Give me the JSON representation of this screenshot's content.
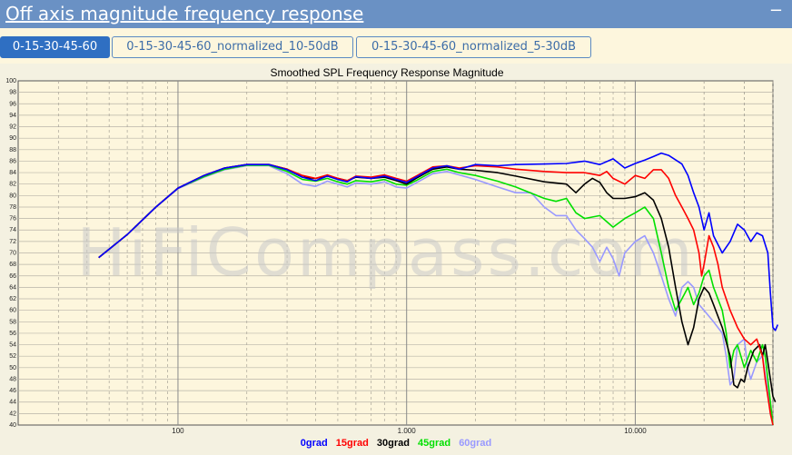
{
  "header": {
    "title": "Off axis magnitude frequency response",
    "collapse": "−"
  },
  "tabs": [
    {
      "label": "0-15-30-45-60",
      "active": true
    },
    {
      "label": "0-15-30-45-60_normalized_10-50dB",
      "active": false
    },
    {
      "label": "0-15-30-45-60_normalized_5-30dB",
      "active": false
    }
  ],
  "watermark": "HiFiCompass.com",
  "chart_data": {
    "type": "line",
    "title": "Smoothed SPL Frequency Response Magnitude",
    "xscale": "log",
    "xlim": [
      20,
      40000
    ],
    "ylim": [
      40,
      100
    ],
    "xticks": [
      {
        "value": 100,
        "label": "100"
      },
      {
        "value": 1000,
        "label": "1.000"
      },
      {
        "value": 10000,
        "label": "10.000"
      }
    ],
    "yticks": [
      40,
      42,
      44,
      46,
      48,
      50,
      52,
      54,
      56,
      58,
      60,
      62,
      64,
      66,
      68,
      70,
      72,
      74,
      76,
      78,
      80,
      82,
      84,
      86,
      88,
      90,
      92,
      94,
      96,
      98,
      100
    ],
    "grid": true,
    "legend_position": "bottom",
    "series": [
      {
        "name": "0grad",
        "color": "#0000ff",
        "points": [
          [
            45,
            69.2
          ],
          [
            60,
            73.2
          ],
          [
            80,
            78
          ],
          [
            100,
            81.3
          ],
          [
            130,
            83.5
          ],
          [
            160,
            84.8
          ],
          [
            200,
            85.4
          ],
          [
            250,
            85.4
          ],
          [
            300,
            84.5
          ],
          [
            350,
            83.2
          ],
          [
            400,
            82.6
          ],
          [
            450,
            83.4
          ],
          [
            500,
            82.8
          ],
          [
            550,
            82.4
          ],
          [
            600,
            83.3
          ],
          [
            700,
            83
          ],
          [
            800,
            83.4
          ],
          [
            900,
            82.8
          ],
          [
            1000,
            82.3
          ],
          [
            1100,
            83.2
          ],
          [
            1300,
            84.8
          ],
          [
            1500,
            85.2
          ],
          [
            1700,
            84.6
          ],
          [
            2000,
            85.4
          ],
          [
            2500,
            85.2
          ],
          [
            3000,
            85.4
          ],
          [
            4000,
            85.5
          ],
          [
            5000,
            85.6
          ],
          [
            6000,
            86
          ],
          [
            7000,
            85.4
          ],
          [
            8000,
            86.4
          ],
          [
            9000,
            84.8
          ],
          [
            10000,
            85.6
          ],
          [
            11000,
            86.2
          ],
          [
            12000,
            86.8
          ],
          [
            13000,
            87.4
          ],
          [
            14000,
            87
          ],
          [
            16000,
            85.5
          ],
          [
            17000,
            83.5
          ],
          [
            18000,
            80.5
          ],
          [
            19000,
            78
          ],
          [
            20000,
            74
          ],
          [
            21000,
            77
          ],
          [
            22000,
            73
          ],
          [
            24000,
            70
          ],
          [
            26000,
            72
          ],
          [
            28000,
            75
          ],
          [
            30000,
            74
          ],
          [
            32000,
            72
          ],
          [
            34000,
            73.5
          ],
          [
            36000,
            73
          ],
          [
            38000,
            70
          ],
          [
            39000,
            63
          ],
          [
            40000,
            57
          ],
          [
            41000,
            56.5
          ],
          [
            42000,
            57.5
          ]
        ]
      },
      {
        "name": "15grad",
        "color": "#ff0000",
        "points": [
          [
            45,
            69.2
          ],
          [
            60,
            73.2
          ],
          [
            80,
            78
          ],
          [
            100,
            81.3
          ],
          [
            130,
            83.5
          ],
          [
            160,
            84.8
          ],
          [
            200,
            85.4
          ],
          [
            250,
            85.4
          ],
          [
            300,
            84.6
          ],
          [
            350,
            83.5
          ],
          [
            400,
            83
          ],
          [
            450,
            83.6
          ],
          [
            500,
            83
          ],
          [
            550,
            82.6
          ],
          [
            600,
            83.4
          ],
          [
            700,
            83.2
          ],
          [
            800,
            83.6
          ],
          [
            900,
            83
          ],
          [
            1000,
            82.5
          ],
          [
            1100,
            83.4
          ],
          [
            1300,
            85
          ],
          [
            1500,
            85.2
          ],
          [
            1700,
            84.8
          ],
          [
            2000,
            85.2
          ],
          [
            2500,
            85
          ],
          [
            3000,
            84.6
          ],
          [
            4000,
            84.2
          ],
          [
            5000,
            84
          ],
          [
            6000,
            84
          ],
          [
            7000,
            83.5
          ],
          [
            7500,
            84.2
          ],
          [
            8000,
            83
          ],
          [
            9000,
            82
          ],
          [
            10000,
            83.5
          ],
          [
            11000,
            83
          ],
          [
            12000,
            84.5
          ],
          [
            13000,
            84.5
          ],
          [
            14000,
            83
          ],
          [
            15000,
            80
          ],
          [
            16000,
            78
          ],
          [
            17000,
            76
          ],
          [
            18000,
            74
          ],
          [
            19000,
            70
          ],
          [
            19500,
            66
          ],
          [
            20000,
            68
          ],
          [
            21000,
            73
          ],
          [
            22000,
            71
          ],
          [
            23000,
            68
          ],
          [
            24000,
            64
          ],
          [
            26000,
            60
          ],
          [
            28000,
            57
          ],
          [
            30000,
            55
          ],
          [
            32000,
            54
          ],
          [
            34000,
            55
          ],
          [
            36000,
            52
          ],
          [
            37000,
            48
          ],
          [
            38000,
            45
          ],
          [
            39000,
            42
          ],
          [
            40000,
            40
          ]
        ]
      },
      {
        "name": "30grad",
        "color": "#000000",
        "points": [
          [
            45,
            69.2
          ],
          [
            60,
            73.2
          ],
          [
            80,
            78
          ],
          [
            100,
            81.3
          ],
          [
            130,
            83.5
          ],
          [
            160,
            84.8
          ],
          [
            200,
            85.4
          ],
          [
            250,
            85.4
          ],
          [
            300,
            84.6
          ],
          [
            350,
            83.2
          ],
          [
            400,
            83
          ],
          [
            450,
            83.4
          ],
          [
            500,
            83
          ],
          [
            550,
            82.6
          ],
          [
            600,
            83.2
          ],
          [
            700,
            83
          ],
          [
            800,
            83.2
          ],
          [
            900,
            82.6
          ],
          [
            1000,
            82
          ],
          [
            1100,
            83
          ],
          [
            1300,
            84.6
          ],
          [
            1500,
            85
          ],
          [
            1700,
            84.6
          ],
          [
            2000,
            84.4
          ],
          [
            2500,
            84
          ],
          [
            3000,
            83.4
          ],
          [
            4000,
            82.4
          ],
          [
            5000,
            82
          ],
          [
            5500,
            80.5
          ],
          [
            6000,
            82
          ],
          [
            6500,
            83
          ],
          [
            7000,
            82.3
          ],
          [
            7500,
            80.5
          ],
          [
            8000,
            79.5
          ],
          [
            9000,
            79.5
          ],
          [
            10000,
            79.8
          ],
          [
            11000,
            80.5
          ],
          [
            12000,
            79.2
          ],
          [
            13000,
            76
          ],
          [
            14000,
            71
          ],
          [
            15000,
            64
          ],
          [
            16000,
            58
          ],
          [
            17000,
            54
          ],
          [
            18000,
            57
          ],
          [
            19000,
            62
          ],
          [
            20000,
            64
          ],
          [
            21000,
            63
          ],
          [
            22000,
            61
          ],
          [
            24000,
            57
          ],
          [
            26000,
            52
          ],
          [
            27000,
            47
          ],
          [
            28000,
            46.5
          ],
          [
            29000,
            48
          ],
          [
            30000,
            47.5
          ],
          [
            31000,
            50
          ],
          [
            33000,
            53
          ],
          [
            35000,
            54
          ],
          [
            36000,
            52
          ],
          [
            37000,
            54
          ],
          [
            38000,
            51
          ],
          [
            39000,
            48
          ],
          [
            40000,
            45
          ],
          [
            41000,
            44
          ]
        ]
      },
      {
        "name": "45grad",
        "color": "#00e000",
        "points": [
          [
            45,
            69.2
          ],
          [
            60,
            73.2
          ],
          [
            80,
            78
          ],
          [
            100,
            81.3
          ],
          [
            130,
            83.3
          ],
          [
            160,
            84.6
          ],
          [
            200,
            85.3
          ],
          [
            250,
            85.3
          ],
          [
            300,
            84.2
          ],
          [
            350,
            82.8
          ],
          [
            400,
            82.5
          ],
          [
            450,
            83
          ],
          [
            500,
            82.4
          ],
          [
            550,
            82
          ],
          [
            600,
            82.6
          ],
          [
            700,
            82.4
          ],
          [
            800,
            82.8
          ],
          [
            900,
            82
          ],
          [
            1000,
            81.8
          ],
          [
            1100,
            82.6
          ],
          [
            1300,
            84.2
          ],
          [
            1500,
            84.6
          ],
          [
            1700,
            84
          ],
          [
            2000,
            83.5
          ],
          [
            2500,
            82.5
          ],
          [
            3000,
            81.5
          ],
          [
            4000,
            79.5
          ],
          [
            4500,
            79
          ],
          [
            5000,
            79.5
          ],
          [
            5500,
            77
          ],
          [
            6000,
            76
          ],
          [
            7000,
            76.5
          ],
          [
            8000,
            74.5
          ],
          [
            9000,
            76
          ],
          [
            10000,
            77
          ],
          [
            11000,
            78
          ],
          [
            12000,
            76
          ],
          [
            13000,
            70
          ],
          [
            14000,
            64
          ],
          [
            15000,
            60
          ],
          [
            16000,
            62
          ],
          [
            17000,
            64
          ],
          [
            18000,
            61
          ],
          [
            19000,
            63
          ],
          [
            20000,
            66
          ],
          [
            21000,
            67
          ],
          [
            22000,
            64
          ],
          [
            24000,
            60
          ],
          [
            25000,
            56
          ],
          [
            26000,
            50
          ],
          [
            27000,
            53
          ],
          [
            28000,
            54
          ],
          [
            30000,
            50
          ],
          [
            32000,
            53
          ],
          [
            34000,
            51
          ],
          [
            36000,
            54
          ],
          [
            37000,
            52
          ],
          [
            38000,
            48
          ],
          [
            39000,
            44
          ],
          [
            40000,
            40
          ]
        ]
      },
      {
        "name": "60grad",
        "color": "#9999ff",
        "points": [
          [
            45,
            69.2
          ],
          [
            60,
            73.2
          ],
          [
            80,
            78
          ],
          [
            100,
            81.2
          ],
          [
            130,
            83.2
          ],
          [
            160,
            84.5
          ],
          [
            200,
            85.2
          ],
          [
            250,
            85.2
          ],
          [
            300,
            83.8
          ],
          [
            350,
            82
          ],
          [
            400,
            81.6
          ],
          [
            450,
            82.5
          ],
          [
            500,
            82
          ],
          [
            550,
            81.5
          ],
          [
            600,
            82.2
          ],
          [
            700,
            82
          ],
          [
            800,
            82.4
          ],
          [
            900,
            81.5
          ],
          [
            1000,
            81.3
          ],
          [
            1100,
            82.2
          ],
          [
            1300,
            83.8
          ],
          [
            1500,
            84.2
          ],
          [
            1700,
            83.6
          ],
          [
            2000,
            82.8
          ],
          [
            2500,
            81.5
          ],
          [
            3000,
            80.5
          ],
          [
            3500,
            80.5
          ],
          [
            4000,
            78
          ],
          [
            4500,
            76.5
          ],
          [
            5000,
            76.5
          ],
          [
            5500,
            74
          ],
          [
            6000,
            72.5
          ],
          [
            6500,
            71
          ],
          [
            7000,
            68.5
          ],
          [
            7500,
            71
          ],
          [
            8000,
            69
          ],
          [
            8500,
            66
          ],
          [
            9000,
            70
          ],
          [
            10000,
            72
          ],
          [
            11000,
            73
          ],
          [
            12000,
            70
          ],
          [
            13000,
            66
          ],
          [
            14000,
            62
          ],
          [
            15000,
            59
          ],
          [
            16000,
            64
          ],
          [
            17000,
            65
          ],
          [
            18000,
            64
          ],
          [
            19000,
            61
          ],
          [
            20000,
            60
          ],
          [
            22000,
            58
          ],
          [
            24000,
            56
          ],
          [
            25000,
            52
          ],
          [
            26000,
            47
          ],
          [
            27000,
            48
          ],
          [
            28000,
            54
          ],
          [
            30000,
            55
          ],
          [
            31000,
            50
          ],
          [
            32000,
            48
          ],
          [
            34000,
            51
          ],
          [
            36000,
            52
          ],
          [
            38000,
            46
          ],
          [
            39000,
            42
          ],
          [
            40000,
            40
          ]
        ]
      }
    ]
  }
}
